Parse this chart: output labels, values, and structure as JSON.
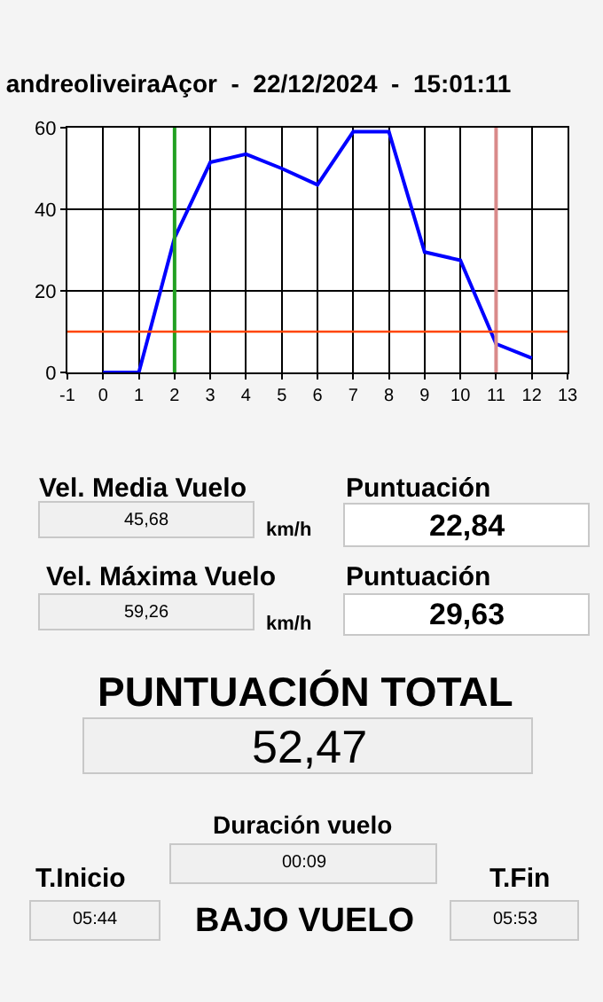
{
  "chart_data": {
    "type": "line",
    "title": "andreoliveiraAçor  -  22/12/2024  -  15:01:11",
    "x": [
      0,
      1,
      2,
      3,
      4,
      5,
      6,
      7,
      8,
      9,
      10,
      11,
      12
    ],
    "series": [
      {
        "color": "#0000ff",
        "values": [
          0,
          0,
          33,
          51.5,
          53.5,
          50,
          46,
          59,
          59,
          29.5,
          27.5,
          7,
          3.5
        ]
      }
    ],
    "xlim": [
      -1,
      13
    ],
    "xticks": [
      -1,
      0,
      1,
      2,
      3,
      4,
      5,
      6,
      7,
      8,
      9,
      10,
      11,
      12,
      13
    ],
    "ylim": [
      0,
      60
    ],
    "yticks": [
      0,
      20,
      40,
      60
    ],
    "grid": true,
    "marker": "none",
    "line_style": "solid",
    "ref_lines": [
      {
        "axis": "x",
        "value": 2,
        "color": "#22a022"
      },
      {
        "axis": "x",
        "value": 11,
        "color": "#d98a8a"
      },
      {
        "axis": "y",
        "value": 10,
        "color": "#ff4500"
      }
    ],
    "annotations": [
      "Vel. Media Vuelo",
      "45,68",
      "km/h",
      "Puntuación",
      "22,84",
      "Vel. Máxima Vuelo",
      "59,26",
      "km/h",
      "Puntuación",
      "29,63",
      "PUNTUACIÓN TOTAL",
      "52,47",
      "Duración vuelo",
      "00:09",
      "T.Inicio",
      "05:44",
      "BAJO VUELO",
      "T.Fin",
      "05:53"
    ]
  }
}
